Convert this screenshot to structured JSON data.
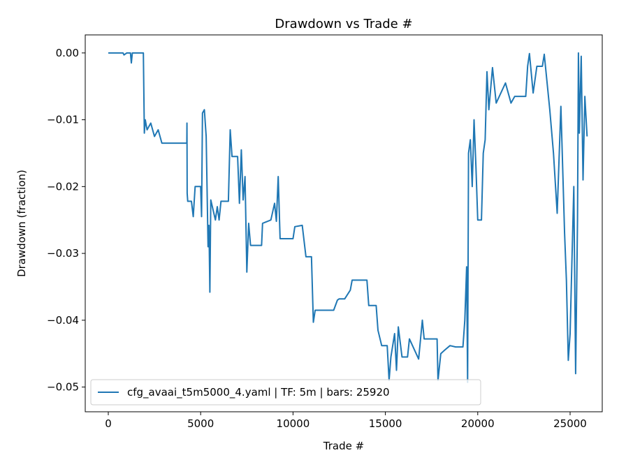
{
  "chart_data": {
    "type": "line",
    "title": "Drawdown vs Trade #",
    "xlabel": "Trade #",
    "ylabel": "Drawdown (fraction)",
    "legend": "lower left",
    "grid": false,
    "xlim": [
      -1248,
      26740
    ],
    "xticks": [
      0,
      5000,
      10000,
      15000,
      20000,
      25000
    ],
    "ylim": [
      -0.0537,
      0.0027
    ],
    "yticks": [
      {
        "value": 0,
        "label": "0.00"
      },
      {
        "value": -0.01,
        "label": "−0.01"
      },
      {
        "value": -0.02,
        "label": "−0.02"
      },
      {
        "value": -0.03,
        "label": "−0.03"
      },
      {
        "value": -0.04,
        "label": "−0.04"
      },
      {
        "value": -0.05,
        "label": "−0.05"
      }
    ],
    "series": [
      {
        "name": "cfg_avaai_t5m5000_4.yaml | TF: 5m | bars: 25920",
        "color": "#1f77b4",
        "x": [
          0,
          800,
          850,
          1000,
          1200,
          1250,
          1300,
          1900,
          1950,
          2000,
          2100,
          2300,
          2500,
          2700,
          2900,
          3500,
          4250,
          4260,
          4270,
          4300,
          4500,
          4600,
          4700,
          5000,
          5050,
          5100,
          5200,
          5300,
          5400,
          5450,
          5500,
          5550,
          5800,
          5900,
          6000,
          6100,
          6500,
          6600,
          6700,
          7000,
          7100,
          7200,
          7300,
          7400,
          7500,
          7600,
          7700,
          8300,
          8350,
          8800,
          9000,
          9100,
          9200,
          9300,
          10000,
          10100,
          10500,
          10700,
          11000,
          11100,
          11200,
          12200,
          12400,
          12500,
          12800,
          13100,
          13200,
          14000,
          14100,
          14500,
          14600,
          14800,
          15100,
          15200,
          15300,
          15500,
          15600,
          15700,
          15900,
          16200,
          16300,
          16800,
          17000,
          17100,
          17800,
          17850,
          18000,
          18200,
          18500,
          18800,
          19200,
          19300,
          19400,
          19450,
          19500,
          19600,
          19700,
          19800,
          19900,
          20000,
          20200,
          20300,
          20400,
          20500,
          20600,
          20800,
          21000,
          21500,
          21800,
          22000,
          22600,
          22700,
          22800,
          23000,
          23200,
          23500,
          23600,
          23900,
          24100,
          24300,
          24500,
          24700,
          24800,
          24900,
          25000,
          25200,
          25300,
          25400,
          25450,
          25500,
          25600,
          25700,
          25800,
          25920
        ],
        "values": [
          0,
          0,
          -0.0003,
          0,
          0,
          -0.0015,
          0,
          0,
          -0.012,
          -0.01,
          -0.0115,
          -0.0105,
          -0.0125,
          -0.0115,
          -0.0135,
          -0.0135,
          -0.0135,
          -0.0105,
          -0.021,
          -0.0222,
          -0.0222,
          -0.0245,
          -0.02,
          -0.02,
          -0.0245,
          -0.009,
          -0.0085,
          -0.0125,
          -0.029,
          -0.0258,
          -0.0358,
          -0.022,
          -0.025,
          -0.023,
          -0.025,
          -0.0222,
          -0.0222,
          -0.0115,
          -0.0155,
          -0.0155,
          -0.0225,
          -0.0145,
          -0.022,
          -0.0185,
          -0.0328,
          -0.0255,
          -0.0288,
          -0.0288,
          -0.0255,
          -0.025,
          -0.0225,
          -0.0252,
          -0.0185,
          -0.0278,
          -0.0278,
          -0.026,
          -0.0258,
          -0.0305,
          -0.0305,
          -0.0403,
          -0.0385,
          -0.0385,
          -0.037,
          -0.0368,
          -0.0368,
          -0.0355,
          -0.034,
          -0.034,
          -0.0378,
          -0.0378,
          -0.0415,
          -0.0438,
          -0.0438,
          -0.049,
          -0.0455,
          -0.042,
          -0.0475,
          -0.041,
          -0.0455,
          -0.0455,
          -0.0428,
          -0.0458,
          -0.04,
          -0.0428,
          -0.0428,
          -0.049,
          -0.045,
          -0.0445,
          -0.0438,
          -0.044,
          -0.044,
          -0.04,
          -0.032,
          -0.0493,
          -0.015,
          -0.013,
          -0.02,
          -0.01,
          -0.017,
          -0.025,
          -0.025,
          -0.015,
          -0.013,
          -0.0028,
          -0.0085,
          -0.0022,
          -0.0075,
          -0.0045,
          -0.0075,
          -0.0065,
          -0.0065,
          -0.002,
          -0.0001,
          -0.006,
          -0.002,
          -0.002,
          -0.0002,
          -0.0085,
          -0.015,
          -0.024,
          -0.008,
          -0.027,
          -0.034,
          -0.046,
          -0.042,
          -0.02,
          -0.048,
          -0.025,
          0,
          -0.012,
          -0.0005,
          -0.019,
          -0.0065,
          -0.0125
        ]
      }
    ]
  }
}
